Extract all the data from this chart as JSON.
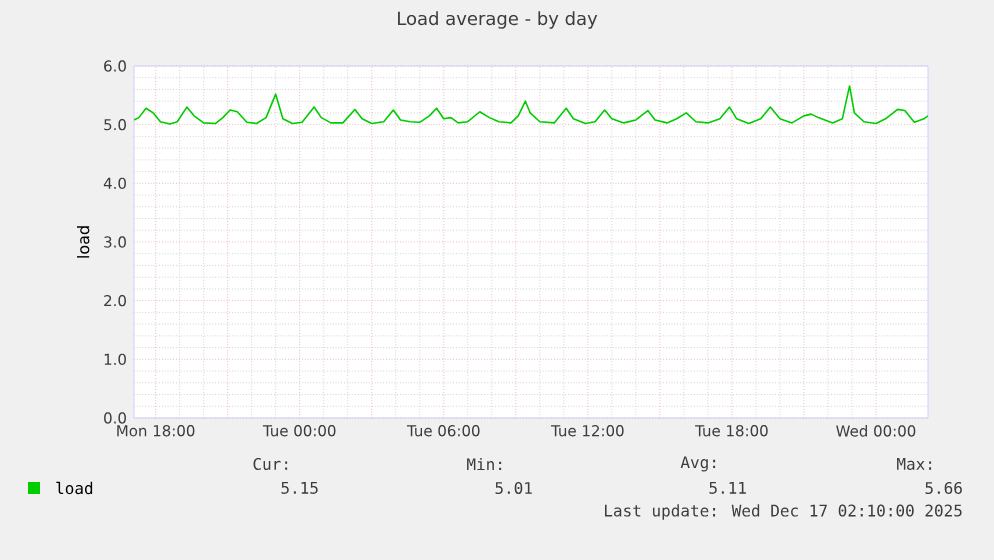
{
  "chart_data": {
    "type": "line",
    "title": "Load average - by day",
    "ylabel": "load",
    "x": [
      "2025-12-15T17:06",
      "2025-12-15T17:18",
      "2025-12-15T17:36",
      "2025-12-15T17:54",
      "2025-12-15T18:12",
      "2025-12-15T18:36",
      "2025-12-15T18:54",
      "2025-12-15T19:18",
      "2025-12-15T19:36",
      "2025-12-15T20:00",
      "2025-12-15T20:30",
      "2025-12-15T20:48",
      "2025-12-15T21:06",
      "2025-12-15T21:24",
      "2025-12-15T21:48",
      "2025-12-15T22:12",
      "2025-12-15T22:36",
      "2025-12-15T23:00",
      "2025-12-15T23:18",
      "2025-12-15T23:42",
      "2025-12-16T00:06",
      "2025-12-16T00:36",
      "2025-12-16T00:54",
      "2025-12-16T01:18",
      "2025-12-16T01:48",
      "2025-12-16T02:18",
      "2025-12-16T02:36",
      "2025-12-16T03:00",
      "2025-12-16T03:30",
      "2025-12-16T03:54",
      "2025-12-16T04:12",
      "2025-12-16T04:36",
      "2025-12-16T05:00",
      "2025-12-16T05:24",
      "2025-12-16T05:42",
      "2025-12-16T06:00",
      "2025-12-16T06:18",
      "2025-12-16T06:36",
      "2025-12-16T07:00",
      "2025-12-16T07:30",
      "2025-12-16T07:54",
      "2025-12-16T08:18",
      "2025-12-16T08:48",
      "2025-12-16T09:06",
      "2025-12-16T09:24",
      "2025-12-16T09:36",
      "2025-12-16T10:00",
      "2025-12-16T10:36",
      "2025-12-16T11:06",
      "2025-12-16T11:24",
      "2025-12-16T11:54",
      "2025-12-16T12:18",
      "2025-12-16T12:42",
      "2025-12-16T13:00",
      "2025-12-16T13:30",
      "2025-12-16T14:00",
      "2025-12-16T14:30",
      "2025-12-16T14:48",
      "2025-12-16T15:18",
      "2025-12-16T15:42",
      "2025-12-16T16:06",
      "2025-12-16T16:30",
      "2025-12-16T17:00",
      "2025-12-16T17:30",
      "2025-12-16T17:54",
      "2025-12-16T18:12",
      "2025-12-16T18:42",
      "2025-12-16T19:12",
      "2025-12-16T19:36",
      "2025-12-16T20:00",
      "2025-12-16T20:30",
      "2025-12-16T21:00",
      "2025-12-16T21:18",
      "2025-12-16T21:36",
      "2025-12-16T22:12",
      "2025-12-16T22:36",
      "2025-12-16T22:54",
      "2025-12-16T23:06",
      "2025-12-16T23:30",
      "2025-12-17T00:00",
      "2025-12-17T00:24",
      "2025-12-17T00:54",
      "2025-12-17T01:12",
      "2025-12-17T01:36",
      "2025-12-17T02:00",
      "2025-12-17T02:10"
    ],
    "series": [
      {
        "name": "load",
        "color": "#00cc00",
        "values": [
          5.08,
          5.12,
          5.28,
          5.2,
          5.05,
          5.01,
          5.05,
          5.3,
          5.15,
          5.03,
          5.02,
          5.12,
          5.25,
          5.22,
          5.04,
          5.02,
          5.12,
          5.52,
          5.1,
          5.02,
          5.04,
          5.3,
          5.12,
          5.03,
          5.03,
          5.26,
          5.1,
          5.02,
          5.05,
          5.25,
          5.08,
          5.05,
          5.04,
          5.15,
          5.28,
          5.1,
          5.12,
          5.03,
          5.05,
          5.22,
          5.12,
          5.05,
          5.03,
          5.15,
          5.4,
          5.2,
          5.05,
          5.03,
          5.28,
          5.1,
          5.02,
          5.05,
          5.25,
          5.1,
          5.03,
          5.08,
          5.24,
          5.08,
          5.03,
          5.1,
          5.2,
          5.05,
          5.03,
          5.1,
          5.3,
          5.1,
          5.02,
          5.1,
          5.3,
          5.1,
          5.03,
          5.15,
          5.18,
          5.12,
          5.03,
          5.1,
          5.66,
          5.2,
          5.05,
          5.02,
          5.1,
          5.26,
          5.24,
          5.04,
          5.1,
          5.15
        ]
      }
    ],
    "xlim": [
      "2025-12-15T17:06",
      "2025-12-17T02:10"
    ],
    "xticks": [
      {
        "value": "2025-12-15T18:00",
        "label": "Mon 18:00"
      },
      {
        "value": "2025-12-15T21:00",
        "label": null
      },
      {
        "value": "2025-12-16T00:00",
        "label": "Tue 00:00"
      },
      {
        "value": "2025-12-16T03:00",
        "label": null
      },
      {
        "value": "2025-12-16T06:00",
        "label": "Tue 06:00"
      },
      {
        "value": "2025-12-16T09:00",
        "label": null
      },
      {
        "value": "2025-12-16T12:00",
        "label": "Tue 12:00"
      },
      {
        "value": "2025-12-16T15:00",
        "label": null
      },
      {
        "value": "2025-12-16T18:00",
        "label": "Tue 18:00"
      },
      {
        "value": "2025-12-16T21:00",
        "label": null
      },
      {
        "value": "2025-12-17T00:00",
        "label": "Wed 00:00"
      }
    ],
    "ylim": [
      0,
      6
    ],
    "yticks": [
      {
        "value": 0,
        "label": "0.0"
      },
      {
        "value": 1,
        "label": "1.0"
      },
      {
        "value": 2,
        "label": "2.0"
      },
      {
        "value": 3,
        "label": "3.0"
      },
      {
        "value": 4,
        "label": "4.0"
      },
      {
        "value": 5,
        "label": "5.0"
      },
      {
        "value": 6,
        "label": "6.0"
      }
    ],
    "grid": true,
    "legend": "bottom",
    "marker": "none",
    "line_style": "solid",
    "annotations": [
      "Cur:",
      "Min:",
      "Avg:",
      "Max:",
      "5.15",
      "5.01",
      "5.11",
      "5.66",
      "Last update: Wed Dec 17 02:10:00 2025"
    ]
  }
}
